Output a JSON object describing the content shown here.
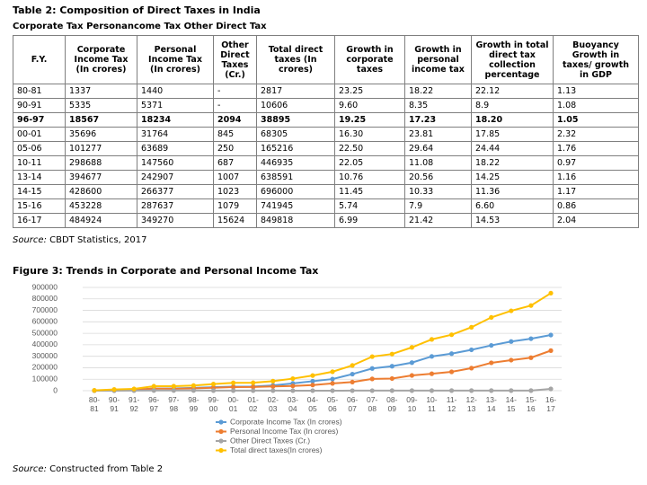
{
  "table_title": "Table 2: Composition of Direct Taxes in India",
  "table_subtitle": "Corporate Tax Personancome Tax Other Direct Tax",
  "table": {
    "headers": [
      "F.Y.",
      "Corporate Income Tax (In crores)",
      "Personal Income Tax (In crores)",
      "Other Direct Taxes (Cr.)",
      "Total direct taxes (In crores)",
      "Growth in corporate taxes",
      "Growth in personal income tax",
      "Growth in total direct tax collection percentage",
      "Buoyancy Growth in taxes/ growth in GDP"
    ],
    "rows": [
      [
        "80-81",
        "1337",
        "1440",
        "-",
        "2817",
        "23.25",
        "18.22",
        "22.12",
        "1.13"
      ],
      [
        "90-91",
        "5335",
        "5371",
        "-",
        "10606",
        "9.60",
        "8.35",
        "8.9",
        "1.08"
      ],
      [
        "96-97",
        "18567",
        "18234",
        "2094",
        "38895",
        "19.25",
        "17.23",
        "18.20",
        "1.05"
      ],
      [
        "00-01",
        "35696",
        "31764",
        "845",
        "68305",
        "16.30",
        "23.81",
        "17.85",
        "2.32"
      ],
      [
        "05-06",
        "101277",
        "63689",
        "250",
        "165216",
        "22.50",
        "29.64",
        "24.44",
        "1.76"
      ],
      [
        "10-11",
        "298688",
        "147560",
        "687",
        "446935",
        "22.05",
        "11.08",
        "18.22",
        "0.97"
      ],
      [
        "13-14",
        "394677",
        "242907",
        "1007",
        "638591",
        "10.76",
        "20.56",
        "14.25",
        "1.16"
      ],
      [
        "14-15",
        "428600",
        "266377",
        "1023",
        "696000",
        "11.45",
        "10.33",
        "11.36",
        "1.17"
      ],
      [
        "15-16",
        "453228",
        "287637",
        "1079",
        "741945",
        "5.74",
        "7.9",
        "6.60",
        "0.86"
      ],
      [
        "16-17",
        "484924",
        "349270",
        "15624",
        "849818",
        "6.99",
        "21.42",
        "14.53",
        "2.04"
      ]
    ]
  },
  "table_source": {
    "label": "Source:",
    "text": "CBDT Statistics, 2017"
  },
  "figure_title": "Figure 3: Trends in Corporate and Personal Income Tax",
  "chart_data": {
    "type": "line",
    "categories": [
      "80-81",
      "90-91",
      "91-92",
      "96-97",
      "97-98",
      "98-99",
      "99-00",
      "00-01",
      "01-02",
      "02-03",
      "03-04",
      "04-05",
      "05-06",
      "06-07",
      "07-08",
      "08-09",
      "09-10",
      "10-11",
      "11-12",
      "12-13",
      "13-14",
      "14-15",
      "15-16",
      "16-17"
    ],
    "series": [
      {
        "name": "Corporate Income Tax (In crores)",
        "color": "#5b9bd5",
        "values": [
          1337,
          5335,
          7853,
          18567,
          20016,
          24529,
          30692,
          35696,
          36609,
          46172,
          63562,
          82680,
          101277,
          144318,
          193561,
          213395,
          244725,
          298688,
          322816,
          356326,
          394677,
          428600,
          453228,
          484924
        ]
      },
      {
        "name": "Personal Income Tax (In crores)",
        "color": "#ed7d31",
        "values": [
          1440,
          5371,
          6731,
          18234,
          17101,
          20240,
          25654,
          31764,
          32004,
          36866,
          41387,
          49268,
          63689,
          75093,
          102644,
          106046,
          132833,
          147560,
          164485,
          196512,
          242907,
          266377,
          287637,
          349270
        ]
      },
      {
        "name": "Other Direct Taxes (Cr.)",
        "color": "#a5a5a5",
        "values": [
          0,
          0,
          1000,
          2094,
          2000,
          1500,
          1000,
          845,
          600,
          500,
          400,
          300,
          250,
          500,
          600,
          700,
          700,
          687,
          800,
          900,
          1007,
          1023,
          1079,
          15624
        ]
      },
      {
        "name": "Total direct taxes(In crores)",
        "color": "#ffc000",
        "values": [
          2817,
          10606,
          15592,
          38895,
          39117,
          44869,
          57960,
          68305,
          69198,
          83088,
          105088,
          132181,
          165216,
          220112,
          296955,
          319441,
          377558,
          446935,
          487488,
          552839,
          638591,
          696000,
          741945,
          849818
        ]
      }
    ],
    "ylim": [
      0,
      900000
    ],
    "yticks": [
      0,
      100000,
      200000,
      300000,
      400000,
      500000,
      600000,
      700000,
      800000,
      900000
    ],
    "grid": true,
    "legend": "bottom"
  },
  "figure_source": {
    "label": "Source:",
    "text": "Constructed from Table 2"
  }
}
